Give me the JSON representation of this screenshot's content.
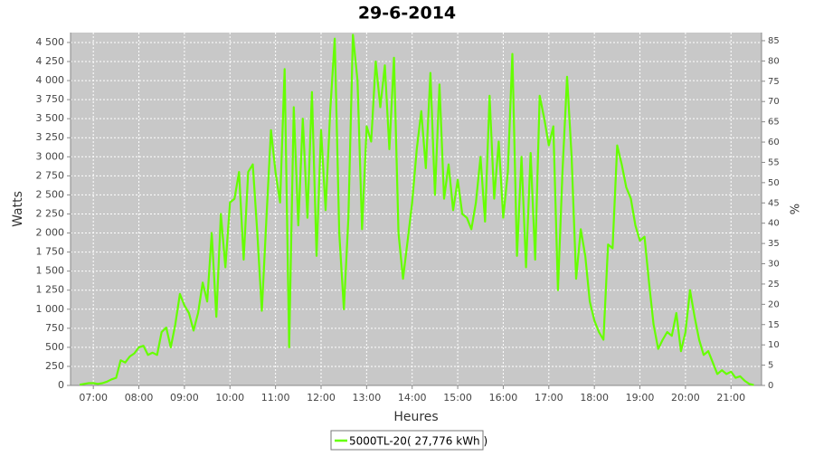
{
  "chart_data": {
    "type": "line",
    "title": "29-6-2014",
    "x_label": "Heures",
    "y_label": "Watts",
    "y2_label": "%",
    "x": [
      6.7,
      6.8,
      6.9,
      7.0,
      7.1,
      7.2,
      7.3,
      7.4,
      7.5,
      7.6,
      7.7,
      7.8,
      7.9,
      8.0,
      8.1,
      8.2,
      8.3,
      8.4,
      8.5,
      8.6,
      8.7,
      8.8,
      8.9,
      9.0,
      9.1,
      9.2,
      9.3,
      9.4,
      9.5,
      9.6,
      9.7,
      9.8,
      9.9,
      10.0,
      10.1,
      10.2,
      10.3,
      10.4,
      10.5,
      10.6,
      10.7,
      10.8,
      10.9,
      11.0,
      11.1,
      11.2,
      11.3,
      11.4,
      11.5,
      11.6,
      11.7,
      11.8,
      11.9,
      12.0,
      12.1,
      12.2,
      12.3,
      12.4,
      12.5,
      12.6,
      12.7,
      12.8,
      12.9,
      13.0,
      13.1,
      13.2,
      13.3,
      13.4,
      13.5,
      13.6,
      13.7,
      13.8,
      13.9,
      14.0,
      14.1,
      14.2,
      14.3,
      14.4,
      14.5,
      14.6,
      14.7,
      14.8,
      14.9,
      15.0,
      15.1,
      15.2,
      15.3,
      15.4,
      15.5,
      15.6,
      15.7,
      15.8,
      15.9,
      16.0,
      16.1,
      16.2,
      16.3,
      16.4,
      16.5,
      16.6,
      16.7,
      16.8,
      16.9,
      17.0,
      17.1,
      17.2,
      17.3,
      17.4,
      17.5,
      17.6,
      17.7,
      17.8,
      17.9,
      18.0,
      18.1,
      18.2,
      18.3,
      18.4,
      18.5,
      18.6,
      18.7,
      18.8,
      18.9,
      19.0,
      19.1,
      19.2,
      19.3,
      19.4,
      19.5,
      19.6,
      19.7,
      19.8,
      19.9,
      20.0,
      20.1,
      20.2,
      20.3,
      20.4,
      20.5,
      20.6,
      20.7,
      20.8,
      20.9,
      21.0,
      21.1,
      21.2,
      21.3,
      21.4,
      21.5
    ],
    "series": [
      {
        "name": "5000TL-20( 27,776 kWh )",
        "color": "#66ff00",
        "values": [
          10,
          20,
          30,
          30,
          20,
          30,
          50,
          80,
          100,
          330,
          300,
          380,
          420,
          500,
          520,
          400,
          430,
          400,
          700,
          760,
          500,
          800,
          1200,
          1050,
          950,
          720,
          950,
          1350,
          1100,
          2000,
          900,
          2250,
          1550,
          2400,
          2450,
          2800,
          1650,
          2800,
          2900,
          2000,
          980,
          2200,
          3350,
          2800,
          2400,
          4150,
          500,
          3650,
          2100,
          3500,
          2200,
          3850,
          1700,
          3350,
          2300,
          3600,
          4550,
          2000,
          1000,
          2200,
          4600,
          4000,
          2050,
          3400,
          3200,
          4250,
          3650,
          4200,
          3100,
          4300,
          2000,
          1400,
          1900,
          2400,
          3100,
          3600,
          2850,
          4100,
          2500,
          3950,
          2450,
          2900,
          2300,
          2700,
          2250,
          2200,
          2050,
          2400,
          3000,
          2150,
          3800,
          2450,
          3200,
          2200,
          2800,
          4350,
          1700,
          3000,
          1550,
          3050,
          1650,
          3800,
          3500,
          3150,
          3400,
          1250,
          2800,
          4050,
          3000,
          1400,
          2050,
          1700,
          1100,
          850,
          700,
          600,
          1850,
          1800,
          3150,
          2900,
          2600,
          2450,
          2100,
          1900,
          1950,
          1350,
          800,
          480,
          600,
          700,
          650,
          950,
          450,
          700,
          1250,
          900,
          600,
          400,
          450,
          300,
          150,
          200,
          150,
          180,
          100,
          120,
          60,
          20,
          5
        ]
      }
    ],
    "xlim": [
      6.5,
      21.67
    ],
    "xticks": [
      {
        "value": 7,
        "label": "07:00"
      },
      {
        "value": 8,
        "label": "08:00"
      },
      {
        "value": 9,
        "label": "09:00"
      },
      {
        "value": 10,
        "label": "10:00"
      },
      {
        "value": 11,
        "label": "11:00"
      },
      {
        "value": 12,
        "label": "12:00"
      },
      {
        "value": 13,
        "label": "13:00"
      },
      {
        "value": 14,
        "label": "14:00"
      },
      {
        "value": 15,
        "label": "15:00"
      },
      {
        "value": 16,
        "label": "16:00"
      },
      {
        "value": 17,
        "label": "17:00"
      },
      {
        "value": 18,
        "label": "18:00"
      },
      {
        "value": 19,
        "label": "19:00"
      },
      {
        "value": 20,
        "label": "20:00"
      },
      {
        "value": 21,
        "label": "21:00"
      }
    ],
    "ylim": [
      0,
      4630
    ],
    "yticks": [
      0,
      250,
      500,
      750,
      {
        "value": 1000,
        "label": "1 000"
      },
      {
        "value": 1250,
        "label": "1 250"
      },
      {
        "value": 1500,
        "label": "1 500"
      },
      {
        "value": 1750,
        "label": "1 750"
      },
      {
        "value": 2000,
        "label": "2 000"
      },
      {
        "value": 2250,
        "label": "2 250"
      },
      {
        "value": 2500,
        "label": "2 500"
      },
      {
        "value": 2750,
        "label": "2 750"
      },
      {
        "value": 3000,
        "label": "3 000"
      },
      {
        "value": 3250,
        "label": "3 250"
      },
      {
        "value": 3500,
        "label": "3 500"
      },
      {
        "value": 3750,
        "label": "3 750"
      },
      {
        "value": 4000,
        "label": "4 000"
      },
      {
        "value": 4250,
        "label": "4 250"
      },
      {
        "value": 4500,
        "label": "4 500"
      }
    ],
    "y2lim": [
      0,
      87
    ],
    "y2ticks": [
      0,
      5,
      10,
      15,
      20,
      25,
      30,
      35,
      40,
      45,
      50,
      55,
      60,
      65,
      70,
      75,
      80,
      85
    ],
    "grid": true,
    "legend": "bottom"
  }
}
